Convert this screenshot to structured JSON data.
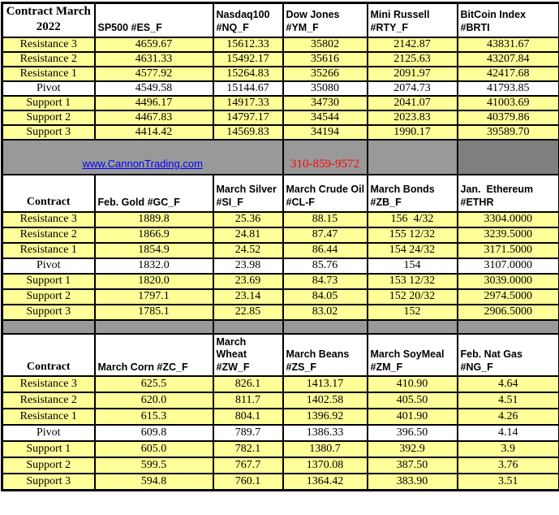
{
  "banner": {
    "link_text": "www.CannonTrading.com",
    "phone": "310-859-9572"
  },
  "colors": {
    "band_yellow": "#FFFF99",
    "banner_gray": "#999999",
    "banner_dark_gray": "#7F7F7F",
    "link_blue": "#0000FF",
    "phone_red": "#FF0000",
    "border_black": "#000000"
  },
  "tables": [
    {
      "corner": "Contract March 2022",
      "columns": [
        "SP500 #ES_F",
        "Nasdaq100\n#NQ_F",
        "Dow Jones\n#YM_F",
        "Mini Russell\n#RTY_F",
        "BitCoin Index #BRTI"
      ],
      "rows": [
        {
          "label": "Resistance 3",
          "values": [
            "4659.67",
            "15612.33",
            "35802",
            "2142.87",
            "43831.67"
          ]
        },
        {
          "label": "Resistance 2",
          "values": [
            "4631.33",
            "15492.17",
            "35616",
            "2125.63",
            "43207.84"
          ]
        },
        {
          "label": "Resistance 1",
          "values": [
            "4577.92",
            "15264.83",
            "35266",
            "2091.97",
            "42417.68"
          ]
        },
        {
          "label": "Pivot",
          "values": [
            "4549.58",
            "15144.67",
            "35080",
            "2074.73",
            "41793.85"
          ]
        },
        {
          "label": "Support 1",
          "values": [
            "4496.17",
            "14917.33",
            "34730",
            "2041.07",
            "41003.69"
          ]
        },
        {
          "label": "Support 2",
          "values": [
            "4467.83",
            "14797.17",
            "34544",
            "2023.83",
            "40379.86"
          ]
        },
        {
          "label": "Support 3",
          "values": [
            "4414.42",
            "14569.83",
            "34194",
            "1990.17",
            "39589.70"
          ]
        }
      ]
    },
    {
      "corner": "Contract",
      "columns": [
        "Feb. Gold #GC_F",
        "March Silver\n#SI_F",
        "March Crude Oil\n#CL-F",
        "March Bonds\n#ZB_F",
        "Jan.  Ethereum\n#ETHR"
      ],
      "rows": [
        {
          "label": "Resistance 3",
          "values": [
            "1889.8",
            "25.36",
            "88.15",
            "156  4/32",
            "3304.0000"
          ]
        },
        {
          "label": "Resistance 2",
          "values": [
            "1866.9",
            "24.81",
            "87.47",
            "155 12/32",
            "3239.5000"
          ]
        },
        {
          "label": "Resistance 1",
          "values": [
            "1854.9",
            "24.52",
            "86.44",
            "154 24/32",
            "3171.5000"
          ]
        },
        {
          "label": "Pivot",
          "values": [
            "1832.0",
            "23.98",
            "85.76",
            "154",
            "3107.0000"
          ]
        },
        {
          "label": "Support 1",
          "values": [
            "1820.0",
            "23.69",
            "84.73",
            "153 12/32",
            "3039.0000"
          ]
        },
        {
          "label": "Support 2",
          "values": [
            "1797.1",
            "23.14",
            "84.05",
            "152 20/32",
            "2974.5000"
          ]
        },
        {
          "label": "Support 3",
          "values": [
            "1785.1",
            "22.85",
            "83.02",
            "152",
            "2906.5000"
          ]
        }
      ]
    },
    {
      "corner": "Contract",
      "columns": [
        "March Corn #ZC_F",
        "March  Wheat\n#ZW_F",
        "March Beans\n#ZS_F",
        "March SoyMeal\n#ZM_F",
        "Feb. Nat Gas #NG_F"
      ],
      "rows": [
        {
          "label": "Resistance 3",
          "values": [
            "625.5",
            "826.1",
            "1413.17",
            "410.90",
            "4.64"
          ]
        },
        {
          "label": "Resistance 2",
          "values": [
            "620.0",
            "811.7",
            "1402.58",
            "405.50",
            "4.51"
          ]
        },
        {
          "label": "Resistance 1",
          "values": [
            "615.3",
            "804.1",
            "1396.92",
            "401.90",
            "4.26"
          ]
        },
        {
          "label": "Pivot",
          "values": [
            "609.8",
            "789.7",
            "1386.33",
            "396.50",
            "4.14"
          ]
        },
        {
          "label": "Support 1",
          "values": [
            "605.0",
            "782.1",
            "1380.7",
            "392.9",
            "3.9"
          ]
        },
        {
          "label": "Support 2",
          "values": [
            "599.5",
            "767.7",
            "1370.08",
            "387.50",
            "3.76"
          ]
        },
        {
          "label": "Support 3",
          "values": [
            "594.8",
            "760.1",
            "1364.42",
            "383.90",
            "3.51"
          ]
        }
      ]
    }
  ]
}
